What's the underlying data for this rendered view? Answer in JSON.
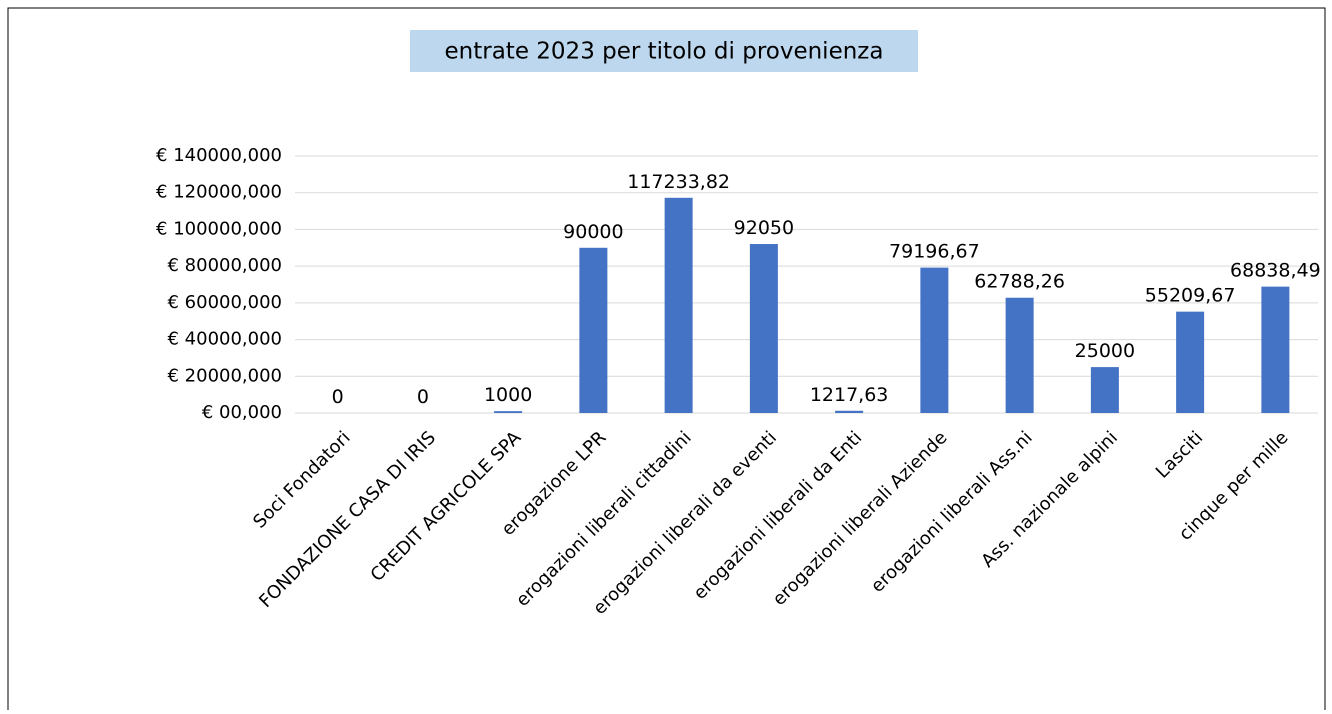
{
  "chart_data": {
    "type": "bar",
    "title": "entrate 2023 per titolo di provenienza",
    "categories": [
      "Soci Fondatori",
      "FONDAZIONE CASA DI IRIS",
      "CREDIT AGRICOLE SPA",
      "erogazione LPR",
      "erogazioni liberali cittadini",
      "erogazioni liberali da eventi",
      "erogazioni liberali da Enti",
      "erogazioni liberali Aziende",
      "erogazioni liberali Ass.ni",
      "Ass. nazionale alpini",
      "Lasciti",
      "cinque per mille"
    ],
    "values": [
      0,
      0,
      1000,
      90000,
      117233.82,
      92050,
      1217.63,
      79196.67,
      62788.26,
      25000,
      55209.67,
      68838.49
    ],
    "value_labels": [
      "0",
      "0",
      "1000",
      "90000",
      "117233,82",
      "92050",
      "1217,63",
      "79196,67",
      "62788,26",
      "25000",
      "55209,67",
      "68838,49"
    ],
    "color": "#4472c4",
    "ylim": [
      0,
      140000
    ],
    "yticks": [
      {
        "value": 0,
        "label": "€ 00,000"
      },
      {
        "value": 20000,
        "label": "€ 20000,000"
      },
      {
        "value": 40000,
        "label": "€ 40000,000"
      },
      {
        "value": 60000,
        "label": "€ 60000,000"
      },
      {
        "value": 80000,
        "label": "€ 80000,000"
      },
      {
        "value": 100000,
        "label": "€ 100000,000"
      },
      {
        "value": 120000,
        "label": "€ 120000,000"
      },
      {
        "value": 140000,
        "label": "€ 140000,000"
      }
    ],
    "grid": true
  }
}
